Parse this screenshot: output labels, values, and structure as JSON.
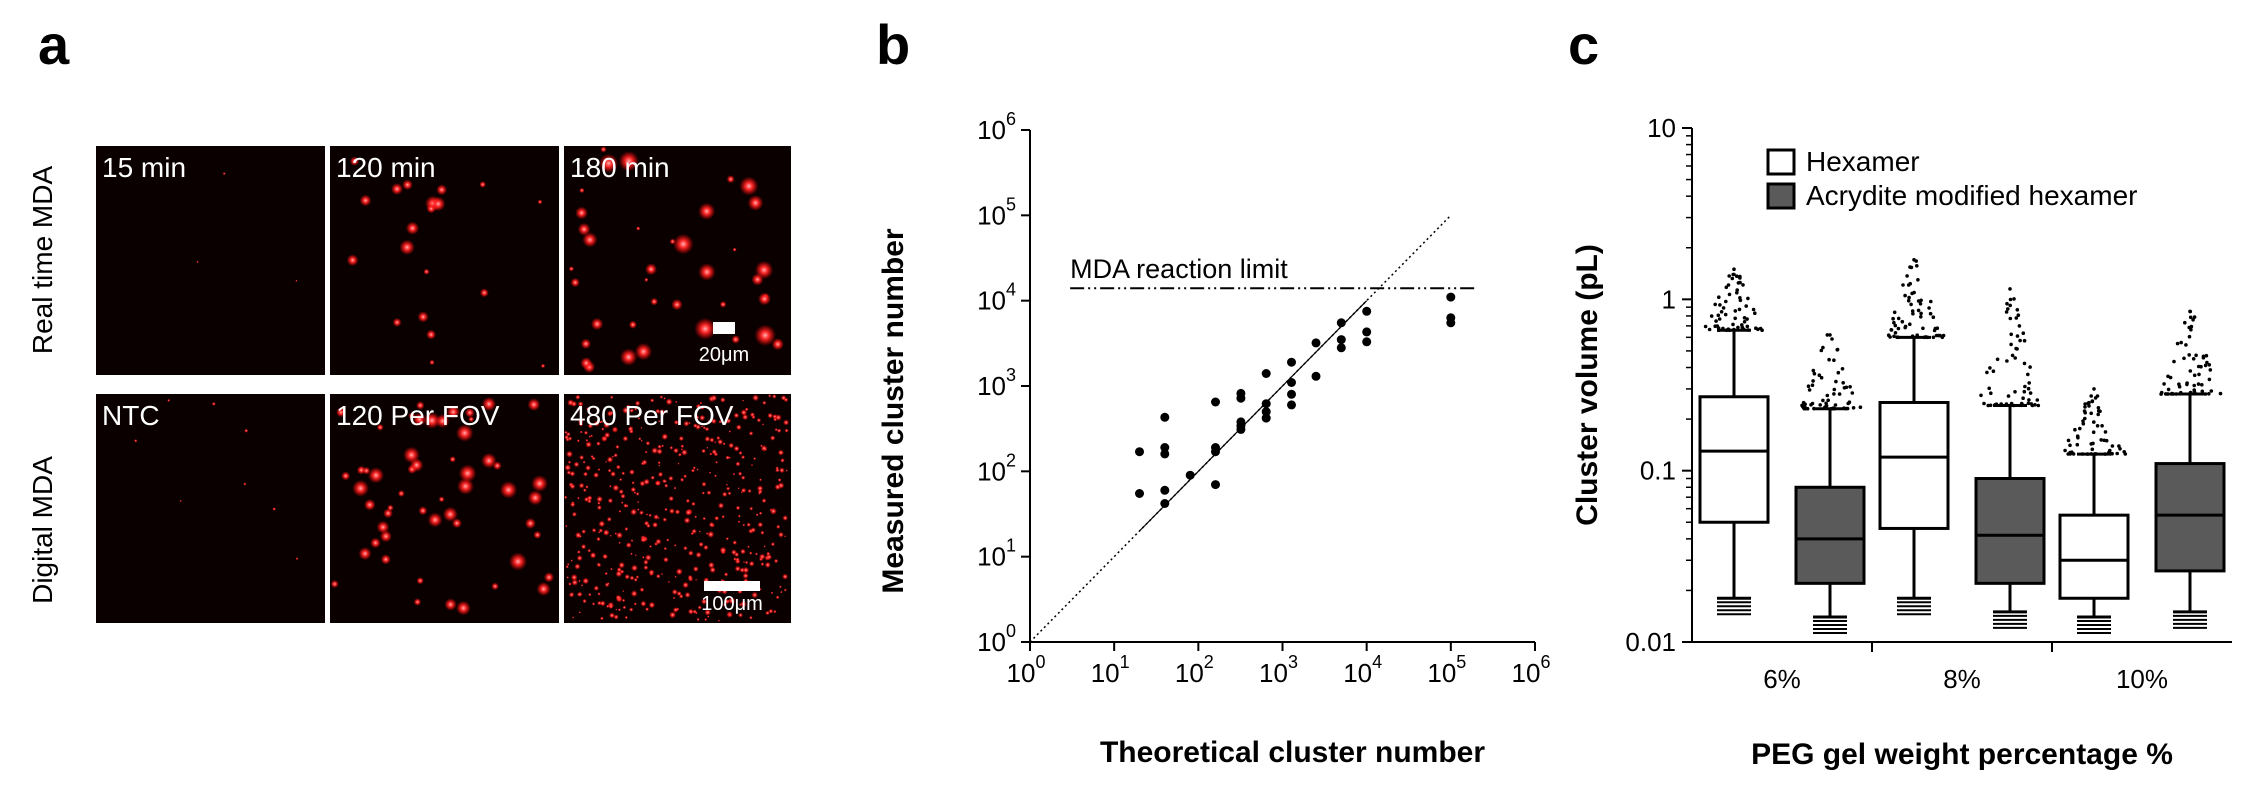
{
  "panels": {
    "a": {
      "label": "a",
      "row_labels": [
        "Real time MDA",
        "Digital MDA"
      ],
      "tiles": [
        [
          "15 min",
          "120 min",
          "180 min"
        ],
        [
          "NTC",
          "120 Per FOV",
          "480 Per FOV"
        ]
      ],
      "scale_bars": [
        "20μm",
        "100μm"
      ]
    },
    "b": {
      "label": "b"
    },
    "c": {
      "label": "c"
    }
  },
  "chart_data": [
    {
      "type": "scatter",
      "panel": "b",
      "xlabel": "Theoretical cluster number",
      "ylabel": "Measured cluster number",
      "xscale": "log",
      "yscale": "log",
      "xlim": [
        1,
        1000000
      ],
      "ylim": [
        1,
        1000000
      ],
      "tick_exponents": [
        0,
        1,
        2,
        3,
        4,
        5,
        6
      ],
      "tick_base": "10",
      "reference_line": {
        "style": "dotted",
        "from": [
          1,
          1
        ],
        "to": [
          100000,
          100000
        ]
      },
      "limit_line": {
        "label": "MDA reaction limit",
        "y": 14000,
        "style": "dash-dot-dot"
      },
      "points": [
        [
          20,
          55
        ],
        [
          20,
          170
        ],
        [
          40,
          42
        ],
        [
          40,
          60
        ],
        [
          40,
          160
        ],
        [
          40,
          190
        ],
        [
          40,
          430
        ],
        [
          80,
          90
        ],
        [
          160,
          70
        ],
        [
          160,
          170
        ],
        [
          160,
          190
        ],
        [
          160,
          650
        ],
        [
          320,
          310
        ],
        [
          320,
          340
        ],
        [
          320,
          380
        ],
        [
          320,
          720
        ],
        [
          320,
          820
        ],
        [
          640,
          420
        ],
        [
          640,
          500
        ],
        [
          640,
          620
        ],
        [
          640,
          1400
        ],
        [
          1280,
          600
        ],
        [
          1280,
          800
        ],
        [
          1280,
          1100
        ],
        [
          1280,
          1900
        ],
        [
          2500,
          1300
        ],
        [
          2500,
          3200
        ],
        [
          5000,
          2800
        ],
        [
          5000,
          3500
        ],
        [
          5000,
          5500
        ],
        [
          10000,
          3300
        ],
        [
          10000,
          4300
        ],
        [
          10000,
          7500
        ],
        [
          100000,
          5500
        ],
        [
          100000,
          6300
        ],
        [
          100000,
          11000
        ]
      ]
    },
    {
      "type": "box",
      "panel": "c",
      "xlabel": "PEG gel weight percentage %",
      "ylabel": "Cluster volume (pL)",
      "yscale": "log",
      "ylim": [
        0.01,
        10
      ],
      "y_ticks": [
        "0.01",
        "0.1",
        "1",
        "10"
      ],
      "categories": [
        "6%",
        "8%",
        "10%"
      ],
      "legend": {
        "placement": "top-right"
      },
      "series": [
        {
          "name": "Hexamer",
          "color": "#ffffff",
          "boxes": [
            {
              "min": 0.018,
              "q1": 0.05,
              "median": 0.13,
              "q3": 0.27,
              "max": 0.66,
              "outlier_max": 1.5
            },
            {
              "min": 0.018,
              "q1": 0.046,
              "median": 0.12,
              "q3": 0.25,
              "max": 0.6,
              "outlier_max": 1.7
            },
            {
              "min": 0.014,
              "q1": 0.018,
              "median": 0.03,
              "q3": 0.055,
              "max": 0.125,
              "outlier_max": 0.3
            }
          ]
        },
        {
          "name": "Acrydite modified hexamer",
          "color": "#5a5a5a",
          "boxes": [
            {
              "min": 0.014,
              "q1": 0.022,
              "median": 0.04,
              "q3": 0.08,
              "max": 0.23,
              "outlier_max": 0.62
            },
            {
              "min": 0.015,
              "q1": 0.022,
              "median": 0.042,
              "q3": 0.09,
              "max": 0.24,
              "outlier_max": 1.15
            },
            {
              "min": 0.015,
              "q1": 0.026,
              "median": 0.055,
              "q3": 0.11,
              "max": 0.28,
              "outlier_max": 0.85
            }
          ]
        }
      ]
    }
  ]
}
